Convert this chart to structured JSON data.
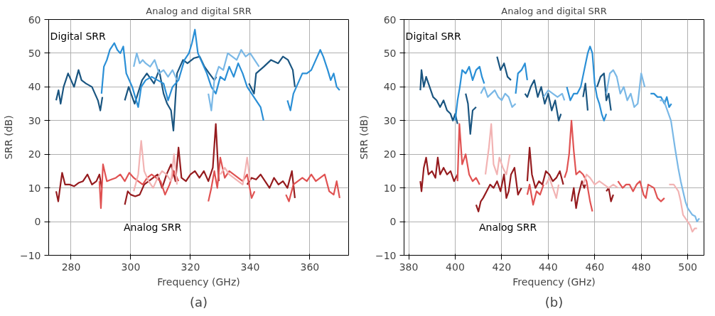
{
  "chart_data": [
    {
      "type": "line",
      "title": "Analog and digital SRR",
      "xlabel": "Frequency (GHz)",
      "ylabel": "SRR (dB)",
      "xlim": [
        272.5,
        373
      ],
      "ylim": [
        -10,
        60
      ],
      "xticks": [
        280,
        300,
        320,
        340,
        360
      ],
      "yticks": [
        -10,
        0,
        10,
        20,
        30,
        40,
        50,
        60
      ],
      "grid": true,
      "line_style": "solid",
      "marker": "none",
      "annotations": [
        "Digital SRR",
        "Analog SRR",
        "(a)"
      ],
      "series": [
        {
          "color": "#1a5580",
          "x": [
            275,
            275.8,
            276.5,
            277.5,
            279,
            280,
            281,
            282.5,
            283.5,
            285,
            287,
            288,
            289,
            289.8,
            290.5,
            291,
            298,
            299.3,
            301.3,
            303.8,
            305.4,
            307.8,
            309.5,
            311,
            312.2,
            313.5,
            314.3,
            315.5,
            317.5,
            319,
            321.1,
            323.1,
            324.7,
            326.3,
            328,
            328.7,
            334,
            339.6,
            341.3,
            342,
            344.6,
            347,
            349.4,
            351,
            352.7,
            354.3,
            355
          ],
          "values": [
            36,
            39,
            35,
            40,
            44,
            42,
            40,
            45,
            42,
            41,
            40,
            38,
            36,
            33,
            37,
            null,
            36,
            40,
            35,
            42,
            44,
            41,
            45,
            38,
            35,
            33,
            27,
            44,
            48,
            47,
            48.5,
            49,
            46,
            44,
            42,
            43,
            null,
            41,
            38,
            44,
            46,
            48,
            47,
            49,
            48,
            45,
            40
          ]
        },
        {
          "color": "#2a8fd6",
          "x": [
            290.2,
            291,
            292,
            293,
            294.5,
            295.5,
            296.5,
            297.5,
            298.5,
            299.5,
            300.5,
            301.5,
            302.5,
            303.5,
            305,
            307,
            309,
            311,
            312.5,
            314,
            316,
            318,
            319.5,
            320.5,
            321.5,
            322.5,
            324,
            325.5,
            327,
            328.5,
            330,
            331.5,
            333,
            334.5,
            336,
            337.5,
            339,
            340.5,
            342,
            343.5,
            344.5,
            348,
            352.5,
            353.5,
            354.5,
            356,
            357.5,
            359,
            360.5,
            362,
            363.5,
            364.5,
            366,
            367,
            368,
            369,
            370
          ],
          "values": [
            38,
            46,
            48,
            51,
            53,
            51,
            50,
            52,
            44,
            42,
            40,
            37,
            34,
            40,
            42,
            43,
            42,
            41,
            36,
            40,
            42,
            48,
            50,
            53,
            57,
            50,
            47,
            44,
            40,
            38,
            43,
            42,
            46,
            43,
            47,
            44,
            40,
            38,
            36,
            34,
            30,
            null,
            36,
            33,
            38,
            41,
            44,
            44,
            45,
            48,
            51,
            49,
            45,
            42,
            44,
            40,
            39
          ]
        },
        {
          "color": "#7ab8e6",
          "x": [
            301,
            302,
            303,
            304,
            305,
            306.5,
            308,
            309.5,
            311,
            312.5,
            314,
            315.5,
            320,
            326,
            327,
            328,
            329.5,
            331,
            332.5,
            334,
            335.5,
            337,
            338.5,
            340,
            341.5,
            343
          ],
          "values": [
            46,
            50,
            47,
            48,
            47,
            46,
            48,
            44,
            45,
            43,
            45,
            42,
            null,
            38,
            33,
            42,
            46,
            45,
            50,
            49,
            48,
            51,
            49,
            50,
            48,
            46
          ]
        },
        {
          "color": "#951b1e",
          "x": [
            275,
            275.7,
            276.3,
            277,
            278,
            279.5,
            281,
            282.5,
            284,
            285.5,
            287,
            288.5,
            289.5,
            290.3,
            294,
            298,
            299,
            300,
            301.5,
            303,
            304.5,
            306,
            307.5,
            309,
            310.5,
            312,
            313.5,
            315,
            316,
            317,
            318.5,
            320,
            321.5,
            323,
            324.5,
            326,
            327.5,
            328.5,
            329.5,
            334,
            339,
            340.5,
            342,
            343.5,
            345,
            346.5,
            348,
            349.5,
            351,
            352.5,
            354,
            355
          ],
          "values": [
            9,
            6,
            10,
            14.5,
            11,
            11,
            10.5,
            11.5,
            12,
            14,
            11,
            12,
            14,
            10,
            null,
            5,
            9,
            8,
            7.5,
            8,
            11,
            12,
            13,
            14,
            10,
            14,
            17,
            12,
            22,
            13,
            12,
            14,
            15,
            13,
            15,
            12,
            16,
            29,
            12,
            null,
            11,
            13,
            12.5,
            14,
            12,
            10,
            13,
            11,
            12,
            10,
            15,
            7
          ]
        },
        {
          "color": "#e05252",
          "x": [
            289.5,
            290,
            290.7,
            292,
            293.5,
            295,
            296.5,
            298,
            299.5,
            301,
            302.5,
            304,
            305.5,
            307,
            308.5,
            310,
            311.5,
            313,
            314.5,
            316,
            320,
            326,
            327,
            328,
            329,
            330,
            331.5,
            333,
            334.5,
            336,
            337.5,
            339,
            340.5,
            341.5,
            347,
            352,
            353,
            354.5,
            356,
            357.5,
            359,
            360.5,
            362,
            363.5,
            365,
            366.5,
            368,
            369,
            370
          ],
          "values": [
            12,
            4,
            17,
            12,
            12.5,
            13,
            14,
            12,
            14.5,
            13,
            12,
            11,
            13,
            14,
            13,
            12,
            8,
            11,
            15,
            12,
            null,
            6,
            10,
            15,
            10,
            19,
            13,
            15,
            14,
            13,
            12,
            14,
            7,
            9,
            null,
            8,
            6,
            11,
            12,
            13,
            12,
            14,
            12,
            13,
            14,
            9,
            8,
            12,
            7
          ]
        },
        {
          "color": "#f2b3b3",
          "x": [
            301,
            302.5,
            303.5,
            304.5,
            306,
            307.5,
            309,
            310.5,
            312,
            313.5,
            314.5,
            315.5,
            322,
            330,
            331.5,
            333,
            334.5,
            336,
            337.5,
            338.5,
            339,
            340
          ],
          "values": [
            9,
            14,
            24,
            15,
            12,
            10,
            13,
            15,
            14,
            12,
            20,
            11,
            null,
            14,
            16,
            14,
            13,
            12,
            11,
            16,
            19,
            12
          ]
        }
      ]
    },
    {
      "type": "line",
      "title": "Analog and digital SRR",
      "xlabel": "Frequency (GHz)",
      "ylabel": "SRR (dB)",
      "xlim": [
        378,
        507
      ],
      "ylim": [
        -10,
        60
      ],
      "xticks": [
        380,
        400,
        420,
        440,
        460,
        480,
        500
      ],
      "yticks": [
        -10,
        0,
        10,
        20,
        30,
        40,
        50,
        60
      ],
      "grid": true,
      "line_style": "solid",
      "marker": "none",
      "annotations": [
        "Digital SRR",
        "Analog SRR",
        "(b)"
      ],
      "series": [
        {
          "color": "#1a5580",
          "x": [
            385,
            385.5,
            386.5,
            387.5,
            389,
            390.5,
            392,
            393.5,
            395,
            396.5,
            398,
            399,
            400,
            401,
            403,
            404.5,
            405.5,
            406.5,
            407.5,
            409,
            412,
            418,
            419.5,
            421,
            422.5,
            424,
            427,
            430,
            431,
            432.5,
            434,
            435.5,
            437,
            438.5,
            440,
            441.5,
            443,
            444.5,
            445.5,
            450,
            455,
            456,
            457,
            459,
            461,
            462.5,
            464,
            465,
            466,
            467
          ],
          "values": [
            39,
            45,
            40,
            43,
            40,
            37,
            36,
            34,
            36,
            33,
            32,
            30,
            32,
            29,
            null,
            38,
            35,
            26,
            33,
            34,
            null,
            49,
            45,
            47,
            43,
            42,
            null,
            38,
            37,
            40,
            42,
            37,
            40,
            35,
            38,
            33,
            36,
            30,
            32,
            null,
            37,
            41,
            33,
            null,
            40,
            43,
            44,
            36,
            38,
            33
          ]
        },
        {
          "color": "#2a8fd6",
          "x": [
            400,
            401,
            402,
            403,
            404.5,
            406,
            407.5,
            409,
            410.5,
            411.5,
            412.5,
            419,
            426,
            427,
            428.5,
            430,
            431,
            440,
            448,
            449.5,
            451,
            452.5,
            454,
            455.5,
            457,
            458,
            459,
            460,
            461,
            462,
            463,
            464,
            465,
            475,
            484,
            485.5,
            487,
            488.5,
            490,
            491,
            492,
            493
          ],
          "values": [
            30,
            36,
            40,
            45,
            44,
            46,
            42,
            45,
            46,
            43,
            41,
            null,
            38,
            44,
            45,
            47,
            42,
            null,
            40,
            36,
            38,
            38,
            40,
            45,
            50,
            52,
            50,
            41,
            37,
            35,
            32,
            30,
            32,
            null,
            38,
            38,
            37,
            37,
            35,
            37,
            34,
            35
          ]
        },
        {
          "color": "#7ab8e6",
          "x": [
            411,
            412.5,
            414,
            415.5,
            417,
            418.5,
            420,
            421.5,
            423,
            424.5,
            426,
            432,
            438,
            440,
            442,
            444,
            446,
            447,
            456,
            465,
            466.5,
            468,
            469.5,
            471,
            472.5,
            474,
            475.5,
            477,
            478.5,
            480,
            481.5,
            484,
            488,
            489.7,
            492.8,
            494.5,
            495.9,
            497,
            498,
            499,
            500,
            501,
            502,
            503.2,
            504,
            505
          ],
          "values": [
            38,
            40,
            37,
            38,
            39,
            37,
            36,
            38,
            37,
            34,
            35,
            null,
            37,
            39,
            38,
            37,
            38,
            36,
            null,
            38,
            44,
            45,
            43,
            38,
            40,
            36,
            38,
            34,
            35,
            44,
            40,
            null,
            36,
            36,
            30,
            22,
            16,
            12,
            9,
            6,
            4,
            3,
            2,
            1.6,
            0,
            1
          ]
        },
        {
          "color": "#951b1e",
          "x": [
            385,
            385.5,
            386.5,
            387.5,
            388.5,
            390,
            391.5,
            392.5,
            393.5,
            395,
            396.5,
            398,
            399.5,
            401,
            405,
            409,
            410,
            411,
            412,
            413.5,
            415,
            416.5,
            418,
            419.5,
            421,
            422,
            423,
            424,
            425.5,
            427,
            428.5,
            430,
            431,
            432,
            433,
            434.5,
            436,
            437.5,
            439,
            440.5,
            442,
            443.5,
            445,
            446.5,
            448,
            450,
            451,
            452,
            453,
            454.5,
            455.5,
            456,
            460,
            465,
            466,
            467,
            468
          ],
          "values": [
            12,
            9,
            16,
            19,
            14,
            15,
            13,
            19,
            14,
            16,
            14,
            15,
            12,
            14,
            null,
            5,
            3,
            6,
            7,
            9,
            11,
            10,
            12,
            9,
            14,
            7,
            9,
            14,
            16,
            8,
            10,
            null,
            12,
            22,
            14,
            10,
            12,
            11,
            15,
            14,
            12,
            13,
            15,
            11,
            null,
            6,
            10,
            4,
            8,
            12,
            10,
            11,
            null,
            9,
            10,
            6,
            8
          ]
        },
        {
          "color": "#e05252",
          "x": [
            401,
            401.8,
            403,
            404.5,
            406,
            407.5,
            409,
            410.5,
            420,
            431,
            432,
            433.5,
            435,
            436.5,
            438,
            442,
            447,
            448,
            449,
            450,
            451,
            452,
            453.5,
            455,
            456.5,
            458,
            459,
            465,
            470,
            472,
            473.5,
            475,
            476.5,
            478,
            479.5,
            481,
            482,
            483,
            485.5,
            487,
            488.5,
            490
          ],
          "values": [
            12,
            29,
            17,
            20,
            14,
            12,
            13,
            11,
            null,
            8,
            11,
            5,
            9,
            8,
            11,
            null,
            13,
            15,
            20,
            30,
            21,
            14,
            15,
            14,
            12,
            6,
            3,
            null,
            12,
            10,
            11,
            11,
            9,
            11,
            12,
            8,
            7,
            11,
            10,
            7,
            6,
            7
          ]
        },
        {
          "color": "#f2b3b3",
          "x": [
            413,
            414.5,
            415.5,
            416.5,
            418,
            419,
            420.5,
            422,
            423.5,
            430,
            439,
            440.5,
            442,
            443.5,
            444.5,
            450,
            455,
            456.5,
            458,
            460,
            462,
            464,
            466,
            468,
            470,
            480,
            492,
            494,
            496,
            497,
            498,
            499,
            500,
            501,
            502,
            503,
            504
          ],
          "values": [
            14,
            22,
            29,
            17,
            14,
            19,
            16,
            14,
            20,
            null,
            11,
            13,
            10,
            7,
            11,
            null,
            11,
            14,
            13,
            11,
            12,
            11,
            10,
            11,
            10,
            null,
            11,
            11,
            9,
            6,
            2,
            1,
            0,
            -1,
            -3,
            -2,
            -2
          ]
        }
      ]
    }
  ]
}
